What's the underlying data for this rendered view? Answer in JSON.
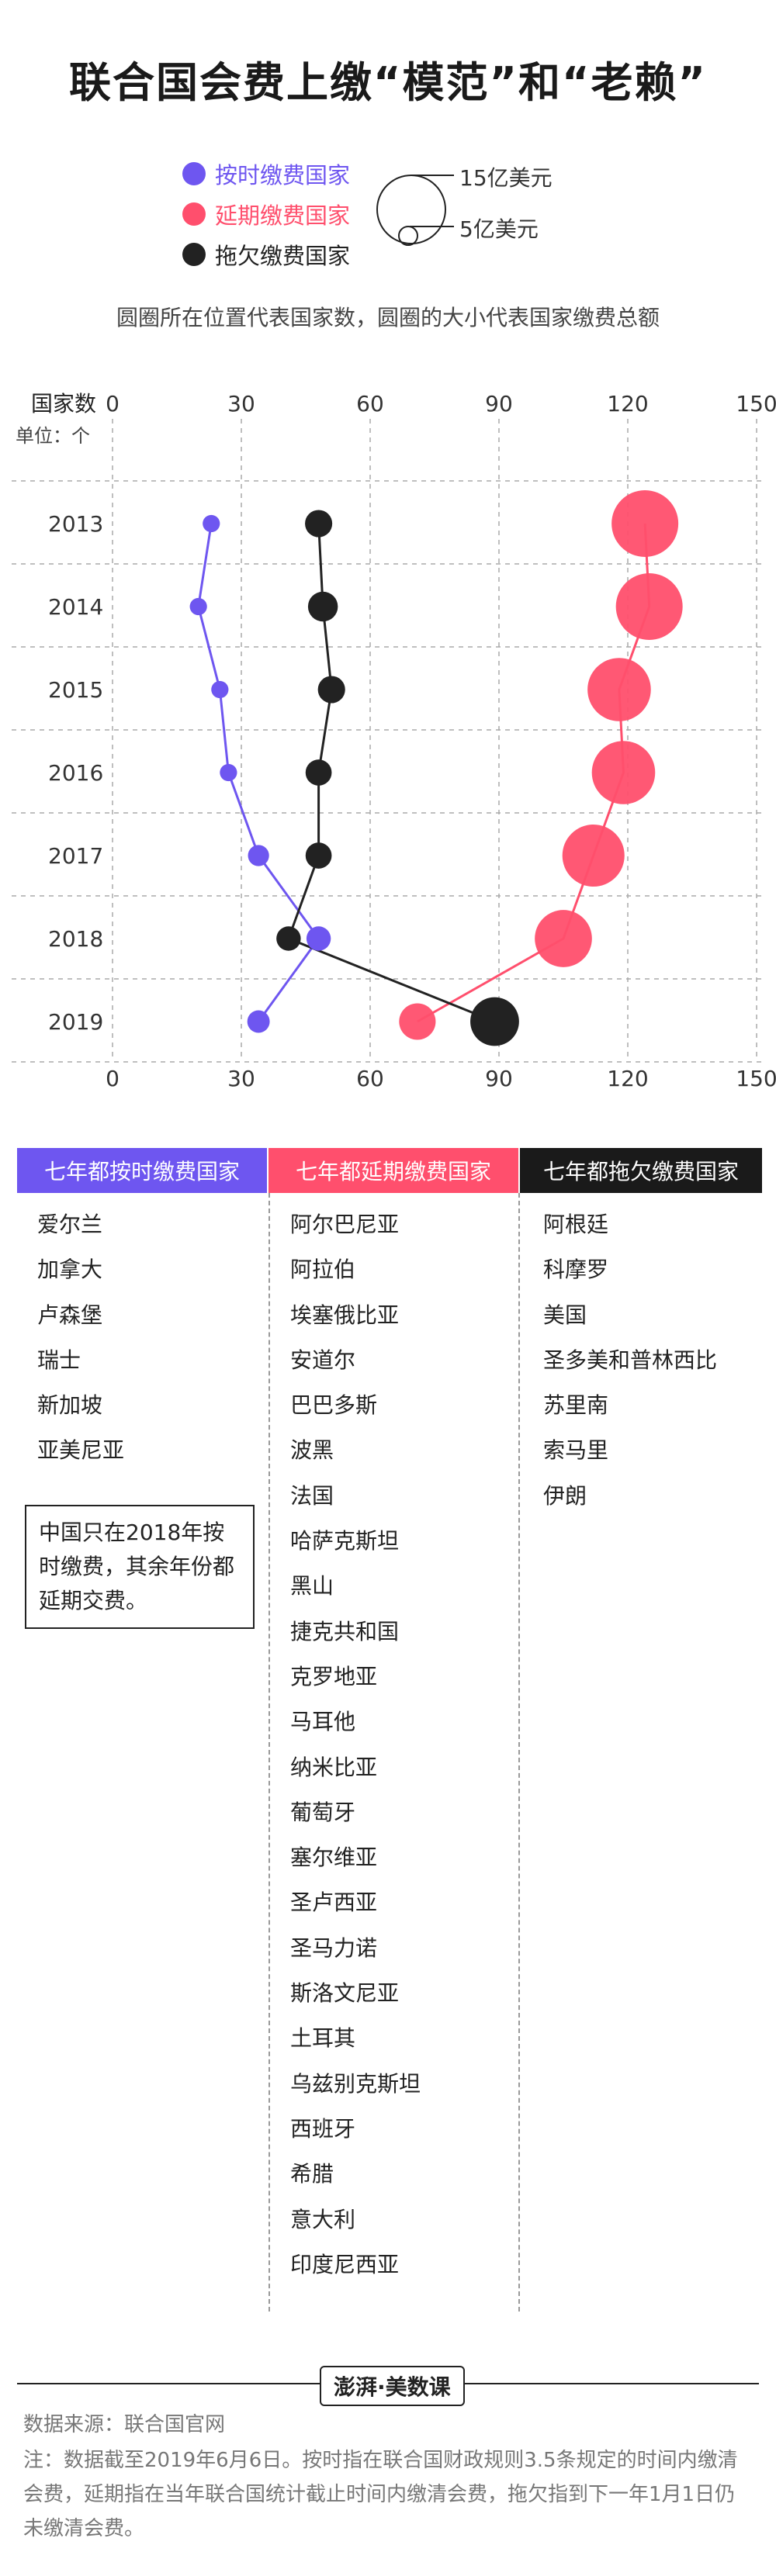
{
  "title": "联合国会费上缴“模范”和“老赖”",
  "legend": {
    "items": [
      {
        "label": "按时缴费国家",
        "color": "#6e56f0"
      },
      {
        "label": "延期缴费国家",
        "color": "#ff4f6d"
      },
      {
        "label": "拖欠缴费国家",
        "color": "#222222"
      }
    ],
    "size_large": "15亿美元",
    "size_small": "5亿美元"
  },
  "subtitle": "圆圈所在位置代表国家数，圆圈的大小代表国家缴费总额",
  "axis_label": "国家数",
  "unit_label": "单位：个",
  "chart_data": {
    "type": "scatter",
    "categories": [
      "2013",
      "2014",
      "2015",
      "2016",
      "2017",
      "2018",
      "2019"
    ],
    "xlim": [
      0,
      150
    ],
    "xticks": [
      0,
      30,
      60,
      90,
      120,
      150
    ],
    "series": [
      {
        "name": "按时缴费国家",
        "color": "#6e56f0",
        "x": [
          23,
          20,
          25,
          27,
          34,
          48,
          34
        ],
        "size": [
          1.0,
          1.0,
          1.0,
          1.0,
          1.5,
          2.0,
          1.7
        ]
      },
      {
        "name": "延期缴费国家",
        "color": "#ff4f6d",
        "x": [
          124,
          125,
          118,
          119,
          112,
          105,
          71
        ],
        "size": [
          15,
          15,
          13.5,
          13.5,
          13,
          11,
          4.5
        ]
      },
      {
        "name": "拖欠缴费国家",
        "color": "#222222",
        "x": [
          48,
          49,
          51,
          48,
          48,
          41,
          89
        ],
        "size": [
          2.5,
          3,
          2.5,
          2.3,
          2.3,
          2.0,
          8
        ]
      }
    ]
  },
  "columns": [
    {
      "header": "七年都按时缴费国家",
      "color": "#6e56f0",
      "items": [
        "爱尔兰",
        "加拿大",
        "卢森堡",
        "瑞士",
        "新加坡",
        "亚美尼亚"
      ]
    },
    {
      "header": "七年都延期缴费国家",
      "color": "#ff4f6d",
      "items": [
        "阿尔巴尼亚",
        "阿拉伯",
        "埃塞俄比亚",
        "安道尔",
        "巴巴多斯",
        "波黑",
        "法国",
        "哈萨克斯坦",
        "黑山",
        "捷克共和国",
        "克罗地亚",
        "马耳他",
        "纳米比亚",
        "葡萄牙",
        "塞尔维亚",
        "圣卢西亚",
        "圣马力诺",
        "斯洛文尼亚",
        "土耳其",
        "乌兹别克斯坦",
        "西班牙",
        "希腊",
        "意大利",
        "印度尼西亚"
      ]
    },
    {
      "header": "七年都拖欠缴费国家",
      "color": "#1a1a1a",
      "items": [
        "阿根廷",
        "科摩罗",
        "美国",
        "圣多美和普林西比",
        "苏里南",
        "索马里",
        "伊朗"
      ]
    }
  ],
  "china_note": "中国只在2018年按时缴费，其余年份都延期交费。",
  "brand": "澎湃·美数课",
  "source": "数据来源：联合国官网",
  "note": "注：数据截至2019年6月6日。按时指在联合国财政规则3.5条规定的时间内缴清会费，延期指在当年联合国统计截止时间内缴清会费，拖欠指到下一年1月1日仍未缴清会费。"
}
